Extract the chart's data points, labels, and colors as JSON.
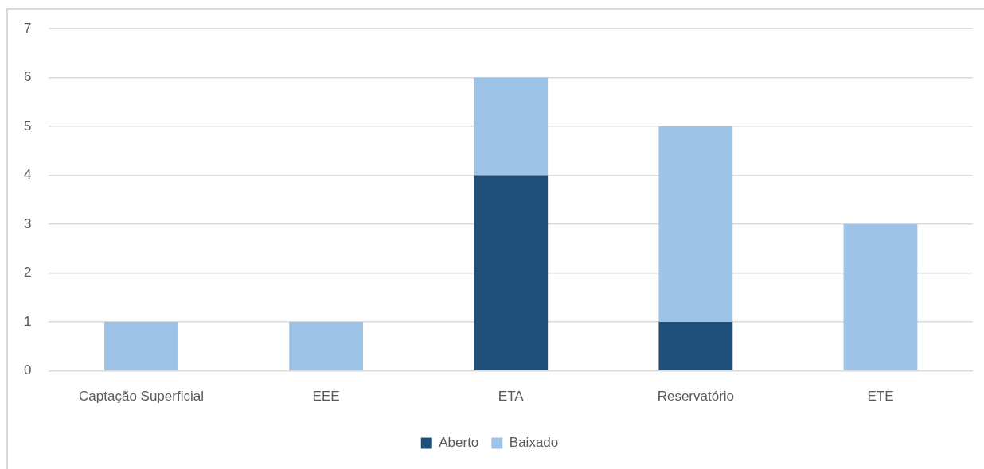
{
  "chart_data": {
    "type": "bar",
    "stacked": true,
    "categories": [
      "Captação Superficial",
      "EEE",
      "ETA",
      "Reservatório",
      "ETE"
    ],
    "series": [
      {
        "name": "Aberto",
        "color": "#1f4e79",
        "values": [
          0,
          0,
          4,
          1,
          0
        ]
      },
      {
        "name": "Baixado",
        "color": "#9dc3e6",
        "values": [
          1,
          1,
          2,
          4,
          3
        ]
      }
    ],
    "ylim": [
      0,
      7
    ],
    "yticks": [
      0,
      1,
      2,
      3,
      4,
      5,
      6,
      7
    ],
    "grid": "y",
    "legend": "bottom"
  }
}
